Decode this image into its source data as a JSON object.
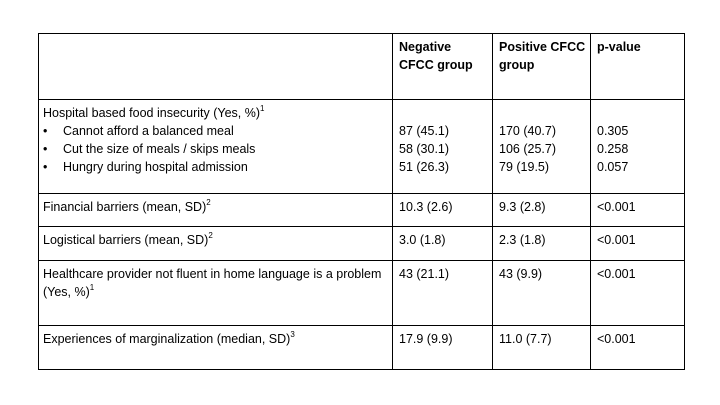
{
  "table": {
    "columns": [
      "Negative CFCC group",
      "Positive CFCC group",
      "p-value"
    ],
    "rows": [
      {
        "label": "Hospital based food insecurity (Yes, %)",
        "sup": "1",
        "items": [
          {
            "label": "Cannot afford a balanced meal",
            "values": [
              "87 (45.1)",
              "170 (40.7)",
              "0.305"
            ]
          },
          {
            "label": "Cut the size of meals / skips meals",
            "values": [
              "58 (30.1)",
              "106 (25.7)",
              "0.258"
            ]
          },
          {
            "label": "Hungry during hospital admission",
            "values": [
              "51 (26.3)",
              "79 (19.5)",
              "0.057"
            ]
          }
        ]
      },
      {
        "label": "Financial barriers (mean, SD)",
        "sup": "2",
        "values": [
          "10.3 (2.6)",
          "9.3 (2.8)",
          "<0.001"
        ]
      },
      {
        "label": "Logistical barriers (mean, SD)",
        "sup": "2",
        "values": [
          "3.0 (1.8)",
          "2.3 (1.8)",
          "<0.001"
        ]
      },
      {
        "label": "Healthcare provider not fluent in home language is a problem (Yes, %)",
        "sup": "1",
        "values": [
          "43 (21.1)",
          "43 (9.9)",
          "<0.001"
        ]
      },
      {
        "label": "Experiences of marginalization (median, SD)",
        "sup": "3",
        "values": [
          "17.9 (9.9)",
          "11.0 (7.7)",
          "<0.001"
        ]
      }
    ]
  }
}
